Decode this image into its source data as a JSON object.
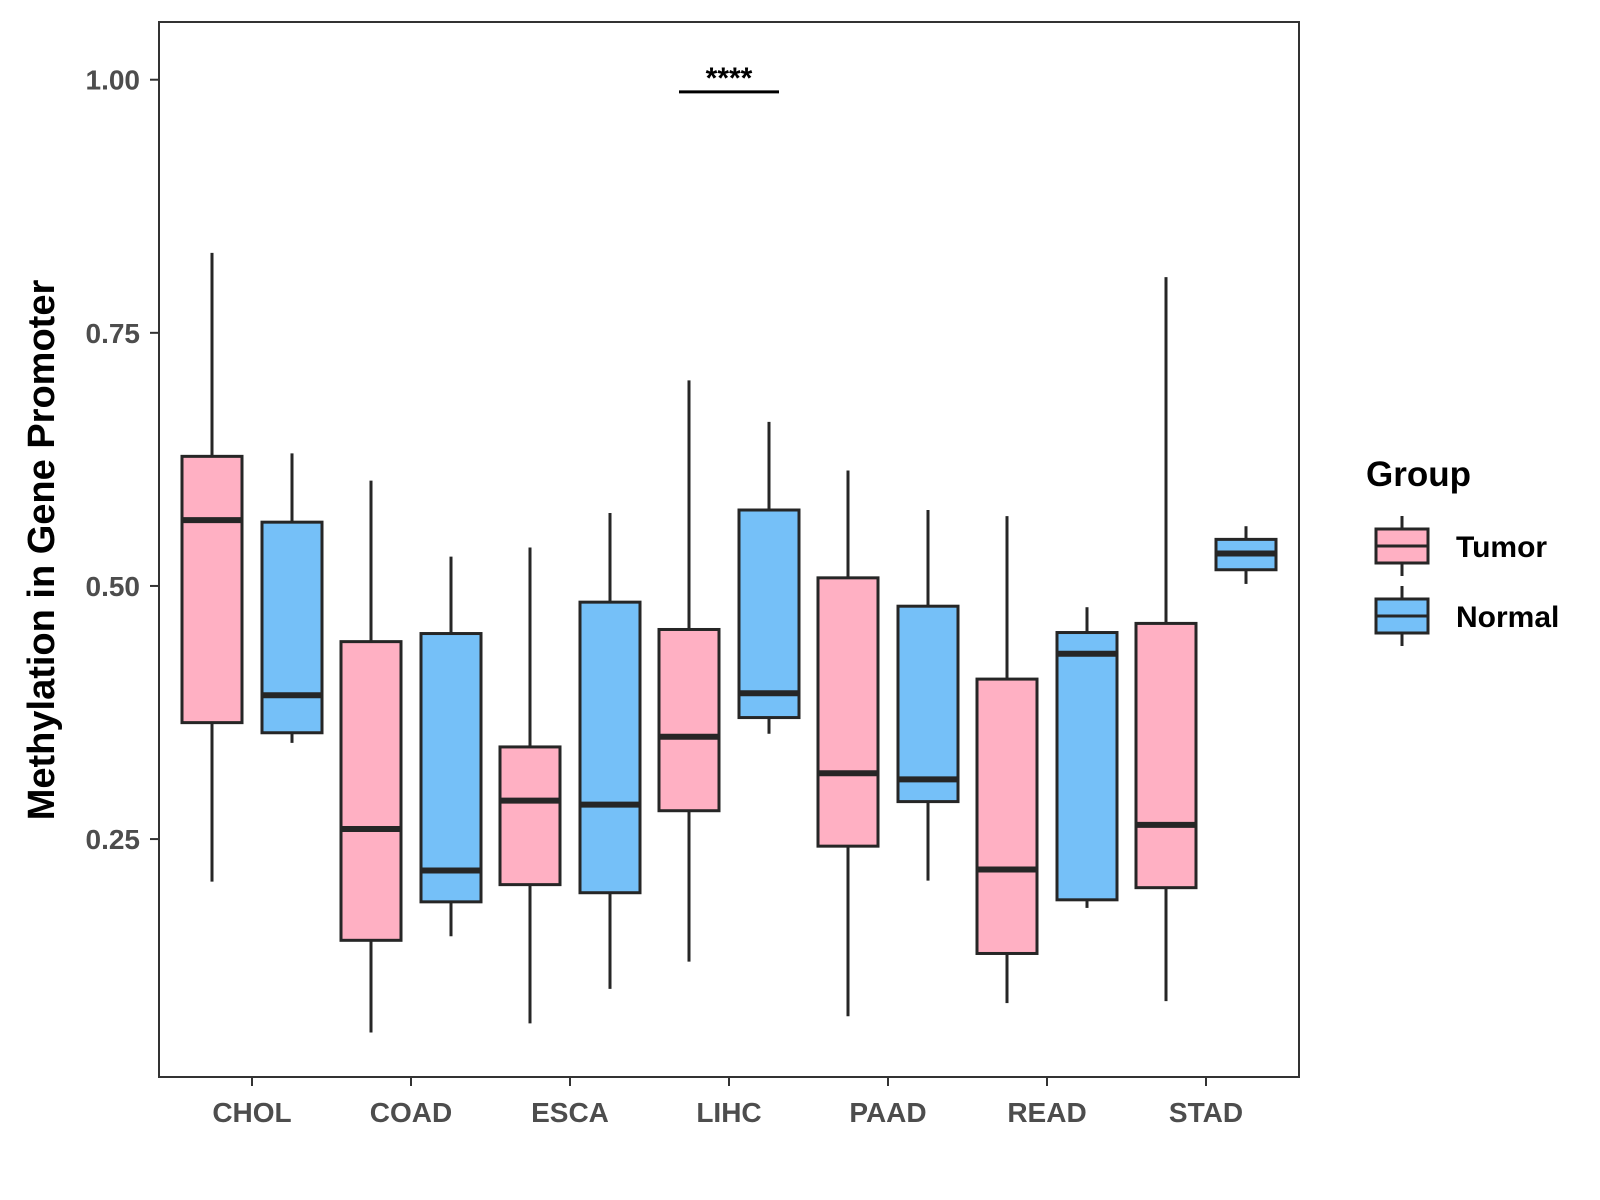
{
  "chart_data": {
    "type": "boxplot",
    "title": "",
    "xlabel": "",
    "ylabel": "Methylation in Gene Promoter",
    "ylim": [
      0.015,
      1.057
    ],
    "y_ticks": [
      0.25,
      0.5,
      0.75,
      1.0
    ],
    "y_tick_labels": [
      "0.25",
      "0.50",
      "0.75",
      "1.00"
    ],
    "categories": [
      "CHOL",
      "COAD",
      "ESCA",
      "LIHC",
      "PAAD",
      "READ",
      "STAD"
    ],
    "legend": {
      "title": "Group",
      "position": "right",
      "entries": [
        {
          "name": "Tumor",
          "color": "#FFB0C3"
        },
        {
          "name": "Normal",
          "color": "#75C0F8"
        }
      ]
    },
    "series": [
      {
        "name": "Tumor",
        "color": "#FFB0C3",
        "boxes": [
          {
            "category": "CHOL",
            "min": 0.208,
            "q1": 0.365,
            "median": 0.565,
            "q3": 0.628,
            "max": 0.829
          },
          {
            "category": "COAD",
            "min": 0.059,
            "q1": 0.15,
            "median": 0.26,
            "q3": 0.445,
            "max": 0.604
          },
          {
            "category": "ESCA",
            "min": 0.068,
            "q1": 0.205,
            "median": 0.288,
            "q3": 0.341,
            "max": 0.538
          },
          {
            "category": "LIHC",
            "min": 0.129,
            "q1": 0.278,
            "median": 0.351,
            "q3": 0.457,
            "max": 0.703
          },
          {
            "category": "PAAD",
            "min": 0.075,
            "q1": 0.243,
            "median": 0.315,
            "q3": 0.508,
            "max": 0.614
          },
          {
            "category": "READ",
            "min": 0.088,
            "q1": 0.137,
            "median": 0.22,
            "q3": 0.408,
            "max": 0.569
          },
          {
            "category": "STAD",
            "min": 0.09,
            "q1": 0.202,
            "median": 0.264,
            "q3": 0.463,
            "max": 0.805
          }
        ]
      },
      {
        "name": "Normal",
        "color": "#75C0F8",
        "boxes": [
          {
            "category": "CHOL",
            "min": 0.345,
            "q1": 0.355,
            "median": 0.392,
            "q3": 0.563,
            "max": 0.631
          },
          {
            "category": "COAD",
            "min": 0.154,
            "q1": 0.188,
            "median": 0.219,
            "q3": 0.453,
            "max": 0.529
          },
          {
            "category": "ESCA",
            "min": 0.102,
            "q1": 0.197,
            "median": 0.284,
            "q3": 0.484,
            "max": 0.572
          },
          {
            "category": "LIHC",
            "min": 0.354,
            "q1": 0.37,
            "median": 0.394,
            "q3": 0.575,
            "max": 0.662
          },
          {
            "category": "PAAD",
            "min": 0.209,
            "q1": 0.287,
            "median": 0.309,
            "q3": 0.48,
            "max": 0.575
          },
          {
            "category": "READ",
            "min": 0.182,
            "q1": 0.19,
            "median": 0.433,
            "q3": 0.454,
            "max": 0.479
          },
          {
            "category": "STAD",
            "min": 0.502,
            "q1": 0.516,
            "median": 0.532,
            "q3": 0.546,
            "max": 0.559
          }
        ]
      }
    ],
    "annotations": [
      {
        "category": "LIHC",
        "label": "****",
        "y": 0.988
      }
    ]
  }
}
